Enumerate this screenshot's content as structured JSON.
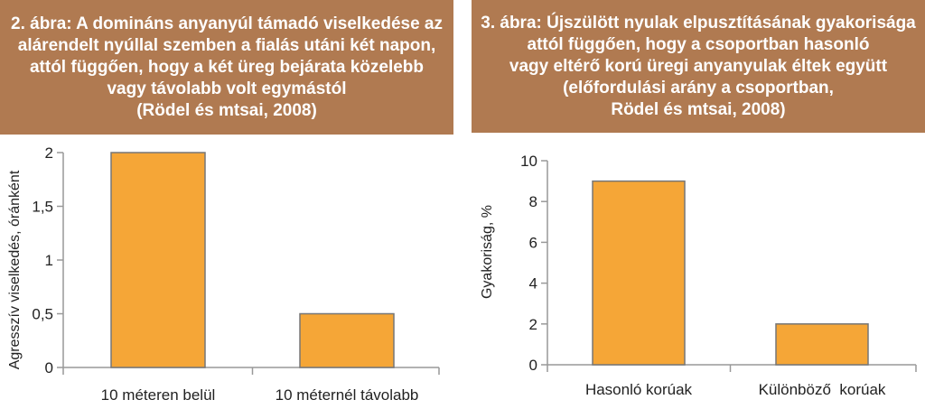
{
  "colors": {
    "title_background": "#b07a51",
    "title_text": "#ffffff",
    "bar_fill": "#f5a637",
    "bar_stroke": "#777777",
    "axis": "#999999"
  },
  "chart_data": [
    {
      "type": "bar",
      "title_lines": [
        "2. ábra: A domináns anyanyúl támadó viselkedése az",
        "alárendelt nyúllal szemben a fialás utáni két napon,",
        "attól függően, hogy a két üreg bejárata közelebb",
        "vagy távolabb volt egymástól",
        "(Rödel és mtsai, 2008)"
      ],
      "categories": [
        "10 méteren belül",
        "10 méternél távolabb"
      ],
      "values": [
        2,
        0.5
      ],
      "ylabel": "Agresszív viselkedés, óránként",
      "xlabel": "",
      "ylim": [
        0,
        2
      ],
      "yticks": [
        0,
        0.5,
        1,
        1.5,
        2
      ],
      "ytick_labels": [
        "0",
        "0,5",
        "1",
        "1,5",
        "2"
      ],
      "grid": false
    },
    {
      "type": "bar",
      "title_lines": [
        "3. ábra: Újszülött nyulak elpusztításának gyakorisága",
        "attól függően, hogy a csoportban hasonló",
        "vagy eltérő korú üregi anyanyulak éltek együtt",
        "(előfordulási arány a csoportban,",
        "Rödel és mtsai, 2008)"
      ],
      "categories": [
        "Hasonló korúak",
        "Különböző  korúak"
      ],
      "values": [
        9,
        2
      ],
      "ylabel": "Gyakoriság, %",
      "xlabel": "",
      "ylim": [
        0,
        10
      ],
      "yticks": [
        0,
        2,
        4,
        6,
        8,
        10
      ],
      "ytick_labels": [
        "0",
        "2",
        "4",
        "6",
        "8",
        "10"
      ],
      "grid": false
    }
  ]
}
